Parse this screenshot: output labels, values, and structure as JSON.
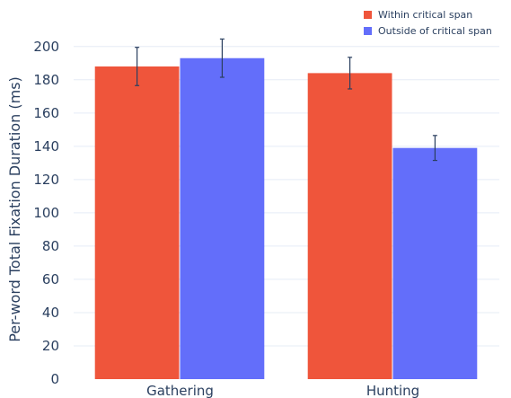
{
  "chart_data": {
    "type": "bar",
    "categories": [
      "Gathering",
      "Hunting"
    ],
    "series": [
      {
        "name": "Within critical span",
        "color": "#EF553B",
        "values": [
          188,
          184
        ],
        "error": [
          11.5,
          9.5
        ]
      },
      {
        "name": "Outside of critical span",
        "color": "#636EFA",
        "values": [
          193,
          139
        ],
        "error": [
          11.5,
          7.5
        ]
      }
    ],
    "ylabel": "Per-word Total Fixation Duration (ms)",
    "xlabel": "",
    "ylim": [
      0,
      215
    ],
    "yticks": [
      0,
      20,
      40,
      60,
      80,
      100,
      120,
      140,
      160,
      180,
      200
    ],
    "grid": true,
    "legend_position": "top-right"
  }
}
